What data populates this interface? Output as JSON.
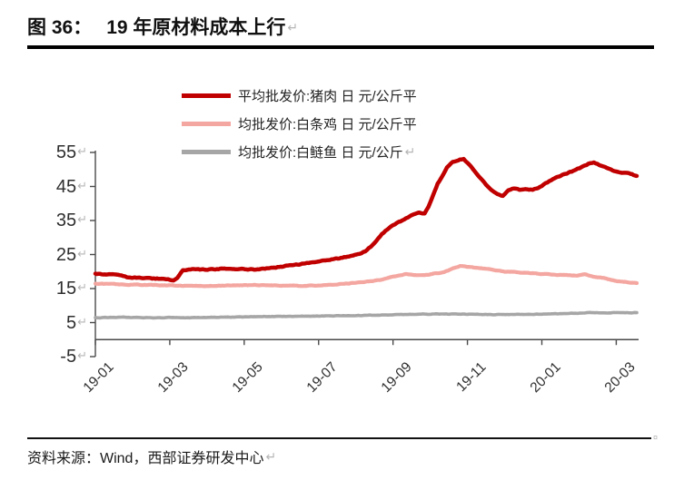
{
  "header": {
    "figure_label": "图 36：",
    "title": "19 年原材料成本上行",
    "return_mark": "↵"
  },
  "legend": [
    {
      "label": "平均批发价:猪肉 日 元/公斤平",
      "color": "#c00000",
      "trailing_mark": ""
    },
    {
      "label": "均批发价:白条鸡 日 元/公斤平",
      "color": "#f4a6a0",
      "trailing_mark": ""
    },
    {
      "label": "均批发价:白鲢鱼 日 元/公斤",
      "color": "#a6a6a6",
      "trailing_mark": "↵"
    }
  ],
  "footer": {
    "source_text": "资料来源：Wind，西部证券研发中心",
    "return_mark": "↵",
    "cell_end_mark": "¤"
  },
  "chart_data": {
    "type": "line",
    "title": "19 年原材料成本上行",
    "xlabel": "",
    "ylabel": "元/公斤",
    "x_unit": "months since 2019-01",
    "xlim": [
      0,
      14.6
    ],
    "ylim": [
      -5,
      55
    ],
    "grid": false,
    "legend_position": "top-center",
    "axis_color": "#4a4a4a",
    "tick_label_color": "#2e2e2e",
    "return_mark": "↵",
    "y_ticks": [
      55,
      45,
      35,
      25,
      15,
      5,
      -5
    ],
    "x_ticks": [
      {
        "t": 0,
        "label": "19-01"
      },
      {
        "t": 2,
        "label": "19-03"
      },
      {
        "t": 4,
        "label": "19-05"
      },
      {
        "t": 6,
        "label": "19-07"
      },
      {
        "t": 8,
        "label": "19-09"
      },
      {
        "t": 10,
        "label": "19-11"
      },
      {
        "t": 12,
        "label": "20-01"
      },
      {
        "t": 14,
        "label": "20-03"
      }
    ],
    "series": [
      {
        "name": "平均批发价:猪肉 日 元/公斤",
        "color": "#c00000",
        "width": 4.5,
        "noise": 0.22,
        "points": [
          [
            0,
            19.3
          ],
          [
            0.25,
            19.2
          ],
          [
            0.5,
            19.1
          ],
          [
            0.7,
            18.9
          ],
          [
            0.85,
            18.3
          ],
          [
            1.1,
            18.2
          ],
          [
            1.4,
            18.0
          ],
          [
            1.7,
            17.9
          ],
          [
            1.95,
            17.7
          ],
          [
            2.1,
            17.4
          ],
          [
            2.2,
            18.2
          ],
          [
            2.35,
            20.3
          ],
          [
            2.6,
            20.8
          ],
          [
            2.85,
            20.6
          ],
          [
            3.1,
            20.6
          ],
          [
            3.35,
            20.8
          ],
          [
            3.6,
            20.7
          ],
          [
            3.85,
            20.8
          ],
          [
            4.1,
            20.7
          ],
          [
            4.35,
            20.6
          ],
          [
            4.6,
            20.9
          ],
          [
            4.85,
            21.2
          ],
          [
            5.1,
            21.6
          ],
          [
            5.35,
            22.0
          ],
          [
            5.6,
            22.3
          ],
          [
            5.85,
            22.7
          ],
          [
            6.1,
            23.2
          ],
          [
            6.35,
            23.6
          ],
          [
            6.6,
            24.0
          ],
          [
            6.85,
            24.5
          ],
          [
            7.1,
            25.2
          ],
          [
            7.3,
            26.3
          ],
          [
            7.5,
            28.3
          ],
          [
            7.7,
            31.0
          ],
          [
            7.9,
            32.9
          ],
          [
            8.1,
            34.2
          ],
          [
            8.3,
            35.3
          ],
          [
            8.5,
            36.5
          ],
          [
            8.7,
            37.2
          ],
          [
            8.85,
            37.1
          ],
          [
            8.95,
            39.0
          ],
          [
            9.08,
            42.6
          ],
          [
            9.2,
            45.9
          ],
          [
            9.32,
            48.0
          ],
          [
            9.45,
            50.7
          ],
          [
            9.6,
            52.2
          ],
          [
            9.8,
            52.9
          ],
          [
            9.9,
            53.0
          ],
          [
            10.05,
            51.5
          ],
          [
            10.2,
            49.5
          ],
          [
            10.4,
            46.8
          ],
          [
            10.6,
            44.3
          ],
          [
            10.8,
            42.9
          ],
          [
            10.95,
            42.3
          ],
          [
            11.1,
            43.9
          ],
          [
            11.25,
            44.4
          ],
          [
            11.4,
            44.0
          ],
          [
            11.6,
            44.2
          ],
          [
            11.75,
            44.0
          ],
          [
            11.9,
            44.5
          ],
          [
            12.1,
            45.9
          ],
          [
            12.3,
            47.3
          ],
          [
            12.55,
            48.4
          ],
          [
            12.8,
            49.4
          ],
          [
            13.05,
            50.5
          ],
          [
            13.25,
            51.6
          ],
          [
            13.4,
            52.2
          ],
          [
            13.55,
            51.3
          ],
          [
            13.75,
            50.4
          ],
          [
            13.95,
            49.6
          ],
          [
            14.1,
            49.2
          ],
          [
            14.3,
            48.9
          ],
          [
            14.55,
            48.1
          ]
        ]
      },
      {
        "name": "平均批发价:白条鸡 日 元/公斤",
        "color": "#f4a6a0",
        "width": 4.2,
        "noise": 0.15,
        "points": [
          [
            0,
            16.5
          ],
          [
            0.5,
            16.3
          ],
          [
            1.0,
            16.1
          ],
          [
            1.5,
            16.1
          ],
          [
            2.0,
            15.9
          ],
          [
            2.5,
            15.8
          ],
          [
            3.0,
            15.8
          ],
          [
            3.5,
            15.9
          ],
          [
            4.0,
            16.0
          ],
          [
            4.5,
            16.0
          ],
          [
            5.0,
            15.9
          ],
          [
            5.5,
            15.8
          ],
          [
            6.0,
            15.9
          ],
          [
            6.5,
            16.2
          ],
          [
            7.0,
            16.7
          ],
          [
            7.4,
            17.1
          ],
          [
            7.7,
            17.6
          ],
          [
            7.9,
            18.2
          ],
          [
            8.15,
            18.8
          ],
          [
            8.35,
            19.3
          ],
          [
            8.6,
            19.0
          ],
          [
            8.85,
            18.9
          ],
          [
            9.1,
            19.4
          ],
          [
            9.35,
            19.7
          ],
          [
            9.6,
            20.9
          ],
          [
            9.8,
            21.6
          ],
          [
            10.0,
            21.4
          ],
          [
            10.25,
            21.1
          ],
          [
            10.5,
            20.8
          ],
          [
            10.75,
            20.3
          ],
          [
            11.0,
            20.0
          ],
          [
            11.25,
            19.8
          ],
          [
            11.5,
            19.6
          ],
          [
            11.75,
            19.5
          ],
          [
            12.0,
            19.3
          ],
          [
            12.25,
            19.1
          ],
          [
            12.5,
            19.0
          ],
          [
            12.75,
            18.9
          ],
          [
            12.95,
            18.8
          ],
          [
            13.15,
            19.2
          ],
          [
            13.4,
            18.5
          ],
          [
            13.65,
            18.1
          ],
          [
            13.9,
            17.4
          ],
          [
            14.15,
            17.0
          ],
          [
            14.55,
            16.6
          ]
        ]
      },
      {
        "name": "平均批发价:白鲢鱼 日 元/公斤",
        "color": "#a6a6a6",
        "width": 3.6,
        "noise": 0.12,
        "points": [
          [
            0,
            6.4
          ],
          [
            0.4,
            6.5
          ],
          [
            0.8,
            6.6
          ],
          [
            1.2,
            6.5
          ],
          [
            1.6,
            6.4
          ],
          [
            2.0,
            6.5
          ],
          [
            2.4,
            6.4
          ],
          [
            2.8,
            6.5
          ],
          [
            3.2,
            6.6
          ],
          [
            3.6,
            6.6
          ],
          [
            4.0,
            6.7
          ],
          [
            4.4,
            6.8
          ],
          [
            4.8,
            6.8
          ],
          [
            5.2,
            6.8
          ],
          [
            5.6,
            6.9
          ],
          [
            6.0,
            6.9
          ],
          [
            6.4,
            7.0
          ],
          [
            6.8,
            7.0
          ],
          [
            7.2,
            7.1
          ],
          [
            7.6,
            7.2
          ],
          [
            8.0,
            7.3
          ],
          [
            8.4,
            7.4
          ],
          [
            8.8,
            7.5
          ],
          [
            9.2,
            7.5
          ],
          [
            9.6,
            7.5
          ],
          [
            10.0,
            7.5
          ],
          [
            10.4,
            7.4
          ],
          [
            10.8,
            7.4
          ],
          [
            11.2,
            7.4
          ],
          [
            11.6,
            7.4
          ],
          [
            12.0,
            7.5
          ],
          [
            12.4,
            7.6
          ],
          [
            12.8,
            7.7
          ],
          [
            13.1,
            7.8
          ],
          [
            13.3,
            8.0
          ],
          [
            13.6,
            7.8
          ],
          [
            13.9,
            7.9
          ],
          [
            14.2,
            7.9
          ],
          [
            14.55,
            7.9
          ]
        ]
      }
    ]
  }
}
